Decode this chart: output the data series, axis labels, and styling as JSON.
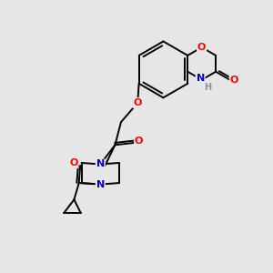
{
  "bg_color": "#e6e6e6",
  "atom_colors": {
    "O": "#ff0000",
    "N": "#0000cc",
    "H": "#7a9a9a",
    "C": "#000000"
  },
  "bond_color": "#000000",
  "bond_width": 1.4,
  "figsize": [
    3.0,
    3.0
  ],
  "dpi": 100
}
